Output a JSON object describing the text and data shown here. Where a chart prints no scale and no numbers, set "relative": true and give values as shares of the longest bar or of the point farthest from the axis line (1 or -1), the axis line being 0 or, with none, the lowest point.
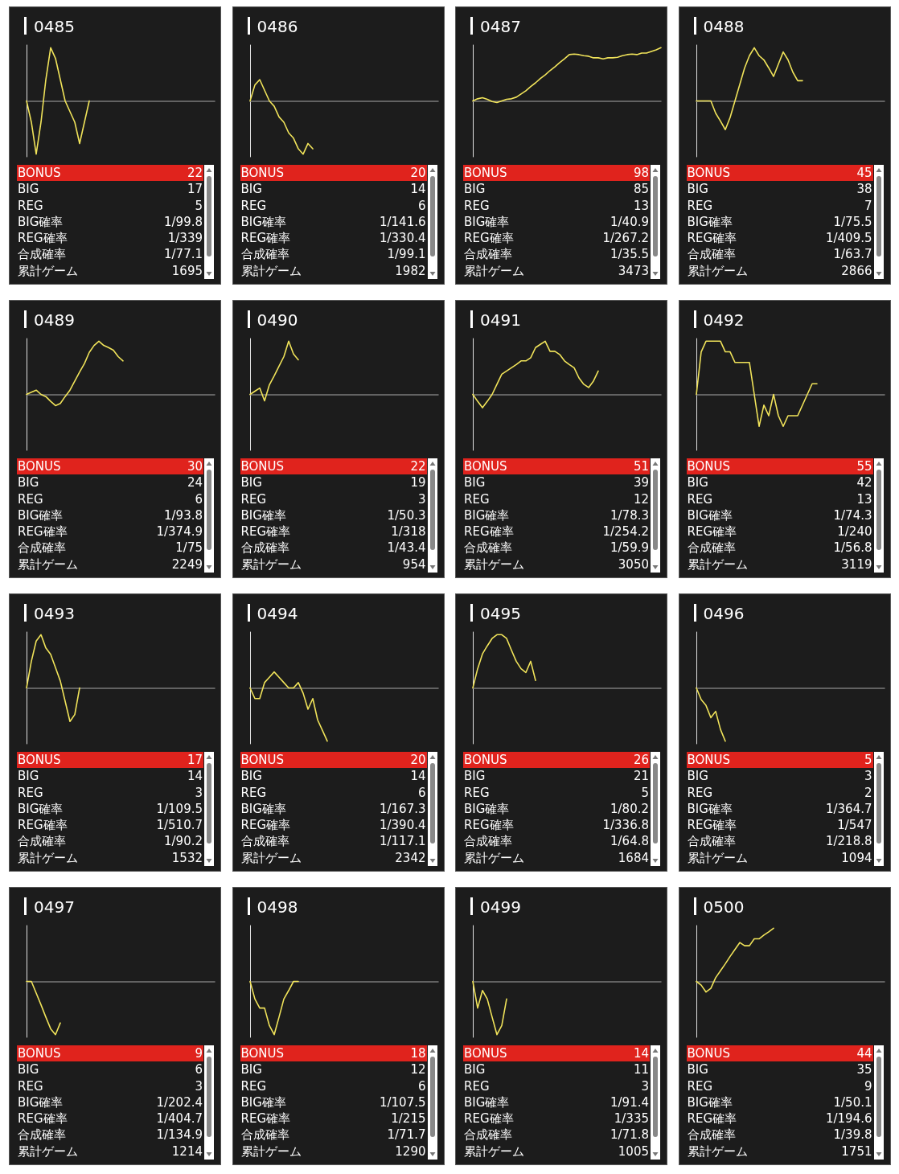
{
  "chart_data": [
    {
      "type": "line",
      "title": "0485",
      "relative": true,
      "categories": [
        null,
        null,
        null,
        null,
        null,
        null,
        null,
        null,
        null,
        null,
        null,
        null,
        null,
        null,
        null,
        null,
        null,
        null,
        null,
        null,
        null,
        null,
        null,
        null,
        null,
        null,
        null,
        null,
        null,
        null,
        null,
        null,
        null,
        null,
        null,
        null,
        null,
        null,
        null,
        null
      ],
      "series": [
        {
          "color": "#f0e35a",
          "values": [
            0,
            -0.4,
            -1,
            -0.4,
            0.4,
            1,
            0.8,
            0.4,
            0,
            -0.2,
            -0.4,
            -0.8,
            -0.4,
            0,
            null,
            null,
            null,
            null,
            null,
            null,
            null,
            null,
            null,
            null,
            null,
            null,
            null,
            null,
            null,
            null,
            null,
            null,
            null,
            null,
            null,
            null,
            null,
            null,
            null,
            null
          ]
        }
      ],
      "annotations": [
        "BONUS",
        "22",
        "BIG",
        "17",
        "REG",
        "5",
        "BIG確率",
        "1/99.8",
        "REG確率",
        "1/339",
        "合成確率",
        "1/77.1",
        "累計ゲーム",
        "1695"
      ]
    },
    {
      "type": "line",
      "title": "0486",
      "relative": true,
      "categories": [
        null,
        null,
        null,
        null,
        null,
        null,
        null,
        null,
        null,
        null,
        null,
        null,
        null,
        null,
        null,
        null,
        null,
        null,
        null,
        null,
        null,
        null,
        null,
        null,
        null,
        null,
        null,
        null,
        null,
        null,
        null,
        null,
        null,
        null,
        null,
        null,
        null,
        null,
        null,
        null
      ],
      "series": [
        {
          "color": "#f0e35a",
          "values": [
            0,
            0.3,
            0.4,
            0.2,
            0,
            -0.1,
            -0.3,
            -0.4,
            -0.6,
            -0.7,
            -0.9,
            -1,
            -0.8,
            -0.9,
            null,
            null,
            null,
            null,
            null,
            null,
            null,
            null,
            null,
            null,
            null,
            null,
            null,
            null,
            null,
            null,
            null,
            null,
            null,
            null,
            null,
            null,
            null,
            null,
            null,
            null
          ]
        }
      ],
      "annotations": [
        "BONUS",
        "20",
        "BIG",
        "14",
        "REG",
        "6",
        "BIG確率",
        "1/141.6",
        "REG確率",
        "1/330.4",
        "合成確率",
        "1/99.1",
        "累計ゲーム",
        "1982"
      ]
    },
    {
      "type": "line",
      "title": "0487",
      "relative": true,
      "categories": [
        null,
        null,
        null,
        null,
        null,
        null,
        null,
        null,
        null,
        null,
        null,
        null,
        null,
        null,
        null,
        null,
        null,
        null,
        null,
        null,
        null,
        null,
        null,
        null,
        null,
        null,
        null,
        null,
        null,
        null,
        null,
        null,
        null,
        null,
        null,
        null,
        null,
        null,
        null,
        null
      ],
      "series": [
        {
          "color": "#f0e35a",
          "values": [
            0,
            0.04,
            0.06,
            0.03,
            -0.01,
            -0.03,
            0,
            0.03,
            0.04,
            0.07,
            0.13,
            0.19,
            0.27,
            0.34,
            0.42,
            0.49,
            0.57,
            0.64,
            0.72,
            0.79,
            0.87,
            0.88,
            0.87,
            0.85,
            0.84,
            0.81,
            0.81,
            0.79,
            0.81,
            0.81,
            0.82,
            0.85,
            0.87,
            0.88,
            0.87,
            0.9,
            0.9,
            0.93,
            0.96,
            1
          ]
        }
      ],
      "annotations": [
        "BONUS",
        "98",
        "BIG",
        "85",
        "REG",
        "13",
        "BIG確率",
        "1/40.9",
        "REG確率",
        "1/267.2",
        "合成確率",
        "1/35.5",
        "累計ゲーム",
        "3473"
      ]
    },
    {
      "type": "line",
      "title": "0488",
      "relative": true,
      "categories": [
        null,
        null,
        null,
        null,
        null,
        null,
        null,
        null,
        null,
        null,
        null,
        null,
        null,
        null,
        null,
        null,
        null,
        null,
        null,
        null,
        null,
        null,
        null,
        null,
        null,
        null,
        null,
        null,
        null,
        null,
        null,
        null,
        null,
        null,
        null,
        null,
        null,
        null,
        null,
        null
      ],
      "series": [
        {
          "color": "#f0e35a",
          "values": [
            0,
            0,
            0,
            0,
            -0.23,
            -0.38,
            -0.54,
            -0.31,
            0,
            0.31,
            0.62,
            0.85,
            1,
            0.85,
            0.77,
            0.62,
            0.46,
            0.69,
            0.92,
            0.77,
            0.54,
            0.38,
            0.38,
            null,
            null,
            null,
            null,
            null,
            null,
            null,
            null,
            null,
            null,
            null,
            null,
            null,
            null,
            null,
            null,
            null
          ]
        }
      ],
      "annotations": [
        "BONUS",
        "45",
        "BIG",
        "38",
        "REG",
        "7",
        "BIG確率",
        "1/75.5",
        "REG確率",
        "1/409.5",
        "合成確率",
        "1/63.7",
        "累計ゲーム",
        "2866"
      ]
    },
    {
      "type": "line",
      "title": "0489",
      "relative": true,
      "categories": [
        null,
        null,
        null,
        null,
        null,
        null,
        null,
        null,
        null,
        null,
        null,
        null,
        null,
        null,
        null,
        null,
        null,
        null,
        null,
        null,
        null,
        null,
        null,
        null,
        null,
        null,
        null,
        null,
        null,
        null,
        null,
        null,
        null,
        null,
        null,
        null,
        null,
        null,
        null,
        null
      ],
      "series": [
        {
          "color": "#f0e35a",
          "values": [
            0,
            0.04,
            0.08,
            0,
            -0.04,
            -0.13,
            -0.21,
            -0.17,
            -0.04,
            0.08,
            0.25,
            0.42,
            0.58,
            0.79,
            0.92,
            1,
            0.92,
            0.88,
            0.83,
            0.71,
            0.63,
            null,
            null,
            null,
            null,
            null,
            null,
            null,
            null,
            null,
            null,
            null,
            null,
            null,
            null,
            null,
            null,
            null,
            null,
            null
          ]
        }
      ],
      "annotations": [
        "BONUS",
        "30",
        "BIG",
        "24",
        "REG",
        "6",
        "BIG確率",
        "1/93.8",
        "REG確率",
        "1/374.9",
        "合成確率",
        "1/75",
        "累計ゲーム",
        "2249"
      ]
    },
    {
      "type": "line",
      "title": "0490",
      "relative": true,
      "categories": [
        null,
        null,
        null,
        null,
        null,
        null,
        null,
        null,
        null,
        null,
        null,
        null,
        null,
        null,
        null,
        null,
        null,
        null,
        null,
        null,
        null,
        null,
        null,
        null,
        null,
        null,
        null,
        null,
        null,
        null,
        null,
        null,
        null,
        null,
        null,
        null,
        null,
        null,
        null,
        null
      ],
      "series": [
        {
          "color": "#f0e35a",
          "values": [
            0,
            0.06,
            0.12,
            -0.12,
            0.18,
            0.35,
            0.53,
            0.71,
            1,
            0.76,
            0.65,
            null,
            null,
            null,
            null,
            null,
            null,
            null,
            null,
            null,
            null,
            null,
            null,
            null,
            null,
            null,
            null,
            null,
            null,
            null,
            null,
            null,
            null,
            null,
            null,
            null,
            null,
            null,
            null,
            null
          ]
        }
      ],
      "annotations": [
        "BONUS",
        "22",
        "BIG",
        "19",
        "REG",
        "3",
        "BIG確率",
        "1/50.3",
        "REG確率",
        "1/318",
        "合成確率",
        "1/43.4",
        "累計ゲーム",
        "954"
      ]
    },
    {
      "type": "line",
      "title": "0491",
      "relative": true,
      "categories": [
        null,
        null,
        null,
        null,
        null,
        null,
        null,
        null,
        null,
        null,
        null,
        null,
        null,
        null,
        null,
        null,
        null,
        null,
        null,
        null,
        null,
        null,
        null,
        null,
        null,
        null,
        null,
        null,
        null,
        null,
        null,
        null,
        null,
        null,
        null,
        null,
        null,
        null,
        null,
        null
      ],
      "series": [
        {
          "color": "#f0e35a",
          "values": [
            0,
            -0.13,
            -0.25,
            -0.13,
            0,
            0.19,
            0.38,
            0.44,
            0.5,
            0.56,
            0.63,
            0.63,
            0.69,
            0.88,
            0.94,
            1,
            0.81,
            0.81,
            0.75,
            0.63,
            0.56,
            0.5,
            0.31,
            0.19,
            0.13,
            0.25,
            0.44,
            null,
            null,
            null,
            null,
            null,
            null,
            null,
            null,
            null,
            null,
            null,
            null,
            null
          ]
        }
      ],
      "annotations": [
        "BONUS",
        "51",
        "BIG",
        "39",
        "REG",
        "12",
        "BIG確率",
        "1/78.3",
        "REG確率",
        "1/254.2",
        "合成確率",
        "1/59.9",
        "累計ゲーム",
        "3050"
      ]
    },
    {
      "type": "line",
      "title": "0492",
      "relative": true,
      "categories": [
        null,
        null,
        null,
        null,
        null,
        null,
        null,
        null,
        null,
        null,
        null,
        null,
        null,
        null,
        null,
        null,
        null,
        null,
        null,
        null,
        null,
        null,
        null,
        null,
        null,
        null,
        null,
        null,
        null,
        null,
        null,
        null,
        null,
        null,
        null,
        null,
        null,
        null,
        null,
        null
      ],
      "series": [
        {
          "color": "#f0e35a",
          "values": [
            0,
            0.8,
            1,
            1,
            1,
            1,
            0.8,
            0.8,
            0.6,
            0.6,
            0.6,
            0.6,
            0,
            -0.6,
            -0.2,
            -0.4,
            0,
            -0.4,
            -0.6,
            -0.4,
            -0.4,
            -0.4,
            -0.2,
            0,
            0.2,
            0.2,
            null,
            null,
            null,
            null,
            null,
            null,
            null,
            null,
            null,
            null,
            null,
            null,
            null,
            null
          ]
        }
      ],
      "annotations": [
        "BONUS",
        "55",
        "BIG",
        "42",
        "REG",
        "13",
        "BIG確率",
        "1/74.3",
        "REG確率",
        "1/240",
        "合成確率",
        "1/56.8",
        "累計ゲーム",
        "3119"
      ]
    },
    {
      "type": "line",
      "title": "0493",
      "relative": true,
      "categories": [
        null,
        null,
        null,
        null,
        null,
        null,
        null,
        null,
        null,
        null,
        null,
        null,
        null,
        null,
        null,
        null,
        null,
        null,
        null,
        null,
        null,
        null,
        null,
        null,
        null,
        null,
        null,
        null,
        null,
        null,
        null,
        null,
        null,
        null,
        null,
        null,
        null,
        null,
        null,
        null
      ],
      "series": [
        {
          "color": "#f0e35a",
          "values": [
            0,
            0.5,
            0.88,
            1,
            0.75,
            0.63,
            0.38,
            0.13,
            -0.25,
            -0.63,
            -0.5,
            0,
            null,
            null,
            null,
            null,
            null,
            null,
            null,
            null,
            null,
            null,
            null,
            null,
            null,
            null,
            null,
            null,
            null,
            null,
            null,
            null,
            null,
            null,
            null,
            null,
            null,
            null,
            null,
            null
          ]
        }
      ],
      "annotations": [
        "BONUS",
        "17",
        "BIG",
        "14",
        "REG",
        "3",
        "BIG確率",
        "1/109.5",
        "REG確率",
        "1/510.7",
        "合成確率",
        "1/90.2",
        "累計ゲーム",
        "1532"
      ]
    },
    {
      "type": "line",
      "title": "0494",
      "relative": true,
      "categories": [
        null,
        null,
        null,
        null,
        null,
        null,
        null,
        null,
        null,
        null,
        null,
        null,
        null,
        null,
        null,
        null,
        null,
        null,
        null,
        null,
        null,
        null,
        null,
        null,
        null,
        null,
        null,
        null,
        null,
        null,
        null,
        null,
        null,
        null,
        null,
        null,
        null,
        null,
        null,
        null
      ],
      "series": [
        {
          "color": "#f0e35a",
          "values": [
            0,
            -0.2,
            -0.2,
            0.1,
            0.2,
            0.3,
            0.2,
            0.1,
            0,
            0,
            0.1,
            -0.1,
            -0.4,
            -0.2,
            -0.6,
            -0.8,
            -1,
            null,
            null,
            null,
            null,
            null,
            null,
            null,
            null,
            null,
            null,
            null,
            null,
            null,
            null,
            null,
            null,
            null,
            null,
            null,
            null,
            null,
            null,
            null
          ]
        }
      ],
      "annotations": [
        "BONUS",
        "20",
        "BIG",
        "14",
        "REG",
        "6",
        "BIG確率",
        "1/167.3",
        "REG確率",
        "1/390.4",
        "合成確率",
        "1/117.1",
        "累計ゲーム",
        "2342"
      ]
    },
    {
      "type": "line",
      "title": "0495",
      "relative": true,
      "categories": [
        null,
        null,
        null,
        null,
        null,
        null,
        null,
        null,
        null,
        null,
        null,
        null,
        null,
        null,
        null,
        null,
        null,
        null,
        null,
        null,
        null,
        null,
        null,
        null,
        null,
        null,
        null,
        null,
        null,
        null,
        null,
        null,
        null,
        null,
        null,
        null,
        null,
        null,
        null,
        null
      ],
      "series": [
        {
          "color": "#f0e35a",
          "values": [
            0,
            0.36,
            0.64,
            0.79,
            0.93,
            1,
            1,
            0.93,
            0.71,
            0.5,
            0.36,
            0.29,
            0.5,
            0.14,
            null,
            null,
            null,
            null,
            null,
            null,
            null,
            null,
            null,
            null,
            null,
            null,
            null,
            null,
            null,
            null,
            null,
            null,
            null,
            null,
            null,
            null,
            null,
            null,
            null,
            null
          ]
        }
      ],
      "annotations": [
        "BONUS",
        "26",
        "BIG",
        "21",
        "REG",
        "5",
        "BIG確率",
        "1/80.2",
        "REG確率",
        "1/336.8",
        "合成確率",
        "1/64.8",
        "累計ゲーム",
        "1684"
      ]
    },
    {
      "type": "line",
      "title": "0496",
      "relative": true,
      "categories": [
        null,
        null,
        null,
        null,
        null,
        null,
        null,
        null,
        null,
        null,
        null,
        null,
        null,
        null,
        null,
        null,
        null,
        null,
        null,
        null,
        null,
        null,
        null,
        null,
        null,
        null,
        null,
        null,
        null,
        null,
        null,
        null,
        null,
        null,
        null,
        null,
        null,
        null,
        null,
        null
      ],
      "series": [
        {
          "color": "#f0e35a",
          "values": [
            0,
            -0.22,
            -0.33,
            -0.56,
            -0.44,
            -0.78,
            -1,
            null,
            null,
            null,
            null,
            null,
            null,
            null,
            null,
            null,
            null,
            null,
            null,
            null,
            null,
            null,
            null,
            null,
            null,
            null,
            null,
            null,
            null,
            null,
            null,
            null,
            null,
            null,
            null,
            null,
            null,
            null,
            null,
            null
          ]
        }
      ],
      "annotations": [
        "BONUS",
        "5",
        "BIG",
        "3",
        "REG",
        "2",
        "BIG確率",
        "1/364.7",
        "REG確率",
        "1/547",
        "合成確率",
        "1/218.8",
        "累計ゲーム",
        "1094"
      ]
    },
    {
      "type": "line",
      "title": "0497",
      "relative": true,
      "categories": [
        null,
        null,
        null,
        null,
        null,
        null,
        null,
        null,
        null,
        null,
        null,
        null,
        null,
        null,
        null,
        null,
        null,
        null,
        null,
        null,
        null,
        null,
        null,
        null,
        null,
        null,
        null,
        null,
        null,
        null,
        null,
        null,
        null,
        null,
        null,
        null,
        null,
        null,
        null,
        null
      ],
      "series": [
        {
          "color": "#f0e35a",
          "values": [
            0,
            0,
            -0.22,
            -0.44,
            -0.67,
            -0.89,
            -1,
            -0.78,
            null,
            null,
            null,
            null,
            null,
            null,
            null,
            null,
            null,
            null,
            null,
            null,
            null,
            null,
            null,
            null,
            null,
            null,
            null,
            null,
            null,
            null,
            null,
            null,
            null,
            null,
            null,
            null,
            null,
            null,
            null,
            null
          ]
        }
      ],
      "annotations": [
        "BONUS",
        "9",
        "BIG",
        "6",
        "REG",
        "3",
        "BIG確率",
        "1/202.4",
        "REG確率",
        "1/404.7",
        "合成確率",
        "1/134.9",
        "累計ゲーム",
        "1214"
      ]
    },
    {
      "type": "line",
      "title": "0498",
      "relative": true,
      "categories": [
        null,
        null,
        null,
        null,
        null,
        null,
        null,
        null,
        null,
        null,
        null,
        null,
        null,
        null,
        null,
        null,
        null,
        null,
        null,
        null,
        null,
        null,
        null,
        null,
        null,
        null,
        null,
        null,
        null,
        null,
        null,
        null,
        null,
        null,
        null,
        null,
        null,
        null,
        null,
        null
      ],
      "series": [
        {
          "color": "#f0e35a",
          "values": [
            0,
            -0.33,
            -0.5,
            -0.5,
            -0.83,
            -1,
            -0.67,
            -0.33,
            -0.17,
            0,
            0,
            null,
            null,
            null,
            null,
            null,
            null,
            null,
            null,
            null,
            null,
            null,
            null,
            null,
            null,
            null,
            null,
            null,
            null,
            null,
            null,
            null,
            null,
            null,
            null,
            null,
            null,
            null,
            null,
            null
          ]
        }
      ],
      "annotations": [
        "BONUS",
        "18",
        "BIG",
        "12",
        "REG",
        "6",
        "BIG確率",
        "1/107.5",
        "REG確率",
        "1/215",
        "合成確率",
        "1/71.7",
        "累計ゲーム",
        "1290"
      ]
    },
    {
      "type": "line",
      "title": "0499",
      "relative": true,
      "categories": [
        null,
        null,
        null,
        null,
        null,
        null,
        null,
        null,
        null,
        null,
        null,
        null,
        null,
        null,
        null,
        null,
        null,
        null,
        null,
        null,
        null,
        null,
        null,
        null,
        null,
        null,
        null,
        null,
        null,
        null,
        null,
        null,
        null,
        null,
        null,
        null,
        null,
        null,
        null,
        null
      ],
      "series": [
        {
          "color": "#f0e35a",
          "values": [
            0,
            -0.5,
            -0.17,
            -0.33,
            -0.67,
            -1,
            -0.83,
            -0.33,
            null,
            null,
            null,
            null,
            null,
            null,
            null,
            null,
            null,
            null,
            null,
            null,
            null,
            null,
            null,
            null,
            null,
            null,
            null,
            null,
            null,
            null,
            null,
            null,
            null,
            null,
            null,
            null,
            null,
            null,
            null,
            null
          ]
        }
      ],
      "annotations": [
        "BONUS",
        "14",
        "BIG",
        "11",
        "REG",
        "3",
        "BIG確率",
        "1/91.4",
        "REG確率",
        "1/335",
        "合成確率",
        "1/71.8",
        "累計ゲーム",
        "1005"
      ]
    },
    {
      "type": "line",
      "title": "0500",
      "relative": true,
      "categories": [
        null,
        null,
        null,
        null,
        null,
        null,
        null,
        null,
        null,
        null,
        null,
        null,
        null,
        null,
        null,
        null,
        null,
        null,
        null,
        null,
        null,
        null,
        null,
        null,
        null,
        null,
        null,
        null,
        null,
        null,
        null,
        null,
        null,
        null,
        null,
        null,
        null,
        null,
        null,
        null
      ],
      "series": [
        {
          "color": "#f0e35a",
          "values": [
            0,
            -0.07,
            -0.2,
            -0.13,
            0.07,
            0.2,
            0.33,
            0.47,
            0.6,
            0.73,
            0.67,
            0.67,
            0.8,
            0.8,
            0.87,
            0.93,
            1,
            null,
            null,
            null,
            null,
            null,
            null,
            null,
            null,
            null,
            null,
            null,
            null,
            null,
            null,
            null,
            null,
            null,
            null,
            null,
            null,
            null,
            null,
            null
          ]
        }
      ],
      "annotations": [
        "BONUS",
        "44",
        "BIG",
        "35",
        "REG",
        "9",
        "BIG確率",
        "1/50.1",
        "REG確率",
        "1/194.6",
        "合成確率",
        "1/39.8",
        "累計ゲーム",
        "1751"
      ]
    }
  ]
}
